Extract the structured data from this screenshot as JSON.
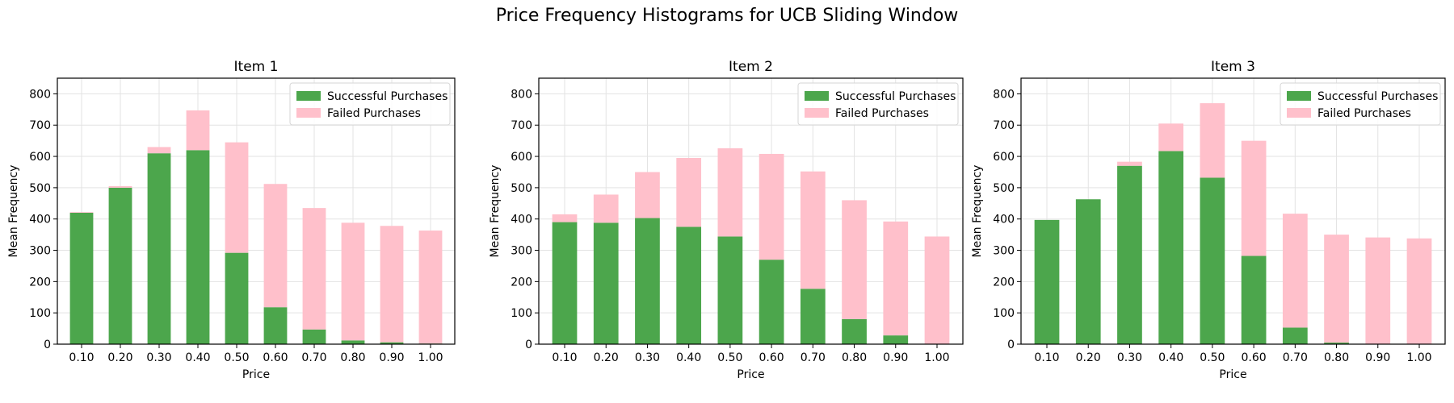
{
  "figure": {
    "title": "Price Frequency Histograms for UCB Sliding Window"
  },
  "colors": {
    "success": "#4ca64c",
    "failed": "#ffc0cb"
  },
  "chart_data": [
    {
      "type": "bar",
      "stacked": true,
      "title": "Item 1",
      "xlabel": "Price",
      "ylabel": "Mean Frequency",
      "categories": [
        "0.10",
        "0.20",
        "0.30",
        "0.40",
        "0.50",
        "0.60",
        "0.70",
        "0.80",
        "0.90",
        "1.00"
      ],
      "ylim": [
        0,
        850
      ],
      "yticks": [
        0,
        100,
        200,
        300,
        400,
        500,
        600,
        700,
        800
      ],
      "grid": true,
      "legend_position": "top-right",
      "series": [
        {
          "name": "Successful Purchases",
          "values": [
            420,
            500,
            610,
            620,
            292,
            118,
            47,
            12,
            6,
            2
          ]
        },
        {
          "name": "Failed Purchases",
          "values": [
            2,
            5,
            20,
            127,
            353,
            394,
            388,
            376,
            372,
            361
          ]
        }
      ]
    },
    {
      "type": "bar",
      "stacked": true,
      "title": "Item 2",
      "xlabel": "Price",
      "ylabel": "Mean Frequency",
      "categories": [
        "0.10",
        "0.20",
        "0.30",
        "0.40",
        "0.50",
        "0.60",
        "0.70",
        "0.80",
        "0.90",
        "1.00"
      ],
      "ylim": [
        0,
        850
      ],
      "yticks": [
        0,
        100,
        200,
        300,
        400,
        500,
        600,
        700,
        800
      ],
      "grid": true,
      "legend_position": "top-right",
      "series": [
        {
          "name": "Successful Purchases",
          "values": [
            390,
            388,
            403,
            375,
            344,
            270,
            177,
            80,
            28,
            1
          ]
        },
        {
          "name": "Failed Purchases",
          "values": [
            25,
            90,
            147,
            220,
            282,
            338,
            375,
            380,
            364,
            343
          ]
        }
      ]
    },
    {
      "type": "bar",
      "stacked": true,
      "title": "Item 3",
      "xlabel": "Price",
      "ylabel": "Mean Frequency",
      "categories": [
        "0.10",
        "0.20",
        "0.30",
        "0.40",
        "0.50",
        "0.60",
        "0.70",
        "0.80",
        "0.90",
        "1.00"
      ],
      "ylim": [
        0,
        850
      ],
      "yticks": [
        0,
        100,
        200,
        300,
        400,
        500,
        600,
        700,
        800
      ],
      "grid": true,
      "legend_position": "top-right",
      "series": [
        {
          "name": "Successful Purchases",
          "values": [
            397,
            463,
            570,
            617,
            532,
            282,
            53,
            5,
            1,
            0
          ]
        },
        {
          "name": "Failed Purchases",
          "values": [
            0,
            0,
            13,
            88,
            238,
            368,
            364,
            345,
            340,
            338
          ]
        }
      ]
    }
  ]
}
